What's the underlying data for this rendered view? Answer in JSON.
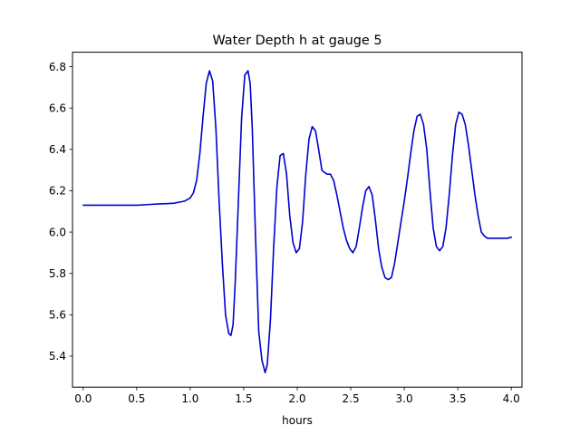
{
  "chart_data": {
    "type": "line",
    "title": "Water Depth h at gauge 5",
    "xlabel": "hours",
    "ylabel": "",
    "xlim": [
      -0.1,
      4.1
    ],
    "ylim": [
      5.25,
      6.87
    ],
    "xticks": [
      {
        "value": 0.0,
        "label": "0.0"
      },
      {
        "value": 0.5,
        "label": "0.5"
      },
      {
        "value": 1.0,
        "label": "1.0"
      },
      {
        "value": 1.5,
        "label": "1.5"
      },
      {
        "value": 2.0,
        "label": "2.0"
      },
      {
        "value": 2.5,
        "label": "2.5"
      },
      {
        "value": 3.0,
        "label": "3.0"
      },
      {
        "value": 3.5,
        "label": "3.5"
      },
      {
        "value": 4.0,
        "label": "4.0"
      }
    ],
    "yticks": [
      {
        "value": 5.4,
        "label": "5.4"
      },
      {
        "value": 5.6,
        "label": "5.6"
      },
      {
        "value": 5.8,
        "label": "5.8"
      },
      {
        "value": 6.0,
        "label": "6.0"
      },
      {
        "value": 6.2,
        "label": "6.2"
      },
      {
        "value": 6.4,
        "label": "6.4"
      },
      {
        "value": 6.6,
        "label": "6.6"
      },
      {
        "value": 6.8,
        "label": "6.8"
      }
    ],
    "grid": false,
    "series": [
      {
        "color": "#0000cc",
        "x": [
          0.0,
          0.2,
          0.4,
          0.5,
          0.6,
          0.7,
          0.8,
          0.85,
          0.9,
          0.95,
          1.0,
          1.03,
          1.06,
          1.09,
          1.12,
          1.15,
          1.18,
          1.21,
          1.24,
          1.27,
          1.3,
          1.33,
          1.36,
          1.38,
          1.4,
          1.42,
          1.45,
          1.48,
          1.51,
          1.54,
          1.56,
          1.58,
          1.61,
          1.64,
          1.67,
          1.7,
          1.72,
          1.75,
          1.78,
          1.81,
          1.84,
          1.87,
          1.9,
          1.93,
          1.96,
          1.99,
          2.02,
          2.05,
          2.08,
          2.11,
          2.14,
          2.17,
          2.2,
          2.23,
          2.25,
          2.28,
          2.31,
          2.34,
          2.37,
          2.4,
          2.43,
          2.46,
          2.49,
          2.52,
          2.55,
          2.58,
          2.61,
          2.64,
          2.67,
          2.7,
          2.73,
          2.76,
          2.79,
          2.82,
          2.85,
          2.88,
          2.91,
          2.94,
          2.97,
          3.0,
          3.03,
          3.06,
          3.09,
          3.12,
          3.15,
          3.18,
          3.21,
          3.24,
          3.27,
          3.3,
          3.33,
          3.36,
          3.39,
          3.42,
          3.45,
          3.48,
          3.51,
          3.54,
          3.57,
          3.6,
          3.63,
          3.66,
          3.69,
          3.72,
          3.75,
          3.78,
          3.81,
          3.84,
          3.87,
          3.9,
          3.93,
          3.96,
          4.0
        ],
        "y": [
          6.13,
          6.13,
          6.13,
          6.13,
          6.133,
          6.136,
          6.138,
          6.14,
          6.145,
          6.15,
          6.165,
          6.19,
          6.25,
          6.38,
          6.56,
          6.72,
          6.78,
          6.73,
          6.5,
          6.15,
          5.85,
          5.6,
          5.51,
          5.5,
          5.55,
          5.75,
          6.15,
          6.55,
          6.76,
          6.78,
          6.72,
          6.5,
          5.98,
          5.52,
          5.38,
          5.32,
          5.36,
          5.58,
          5.93,
          6.22,
          6.37,
          6.38,
          6.28,
          6.08,
          5.95,
          5.9,
          5.92,
          6.05,
          6.28,
          6.45,
          6.51,
          6.49,
          6.4,
          6.3,
          6.29,
          6.28,
          6.28,
          6.25,
          6.18,
          6.1,
          6.02,
          5.96,
          5.92,
          5.9,
          5.93,
          6.02,
          6.12,
          6.2,
          6.22,
          6.18,
          6.06,
          5.92,
          5.83,
          5.78,
          5.77,
          5.78,
          5.85,
          5.95,
          6.05,
          6.15,
          6.26,
          6.38,
          6.49,
          6.56,
          6.57,
          6.52,
          6.4,
          6.2,
          6.02,
          5.93,
          5.91,
          5.93,
          6.02,
          6.18,
          6.37,
          6.52,
          6.58,
          6.57,
          6.52,
          6.42,
          6.3,
          6.18,
          6.08,
          6.0,
          5.98,
          5.97,
          5.97,
          5.97,
          5.97,
          5.97,
          5.97,
          5.97,
          5.975
        ]
      }
    ]
  }
}
